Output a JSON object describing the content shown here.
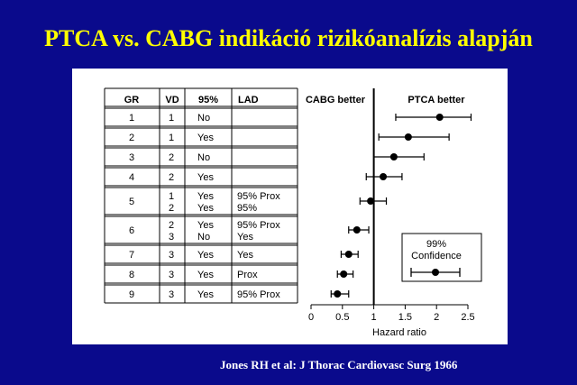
{
  "slide": {
    "title": "PTCA vs. CABG indikáció rizikóanalízis alapján",
    "citation": "Jones RH et al: J Thorac Cardiovasc Surg 1966"
  },
  "colors": {
    "background": "#0a0a8c",
    "title": "#ffff00",
    "citation": "#ffffff",
    "panel": "#ffffff",
    "ink": "#000000"
  },
  "chart_data": {
    "type": "forest",
    "table_headers": [
      "GR",
      "VD",
      "95%",
      "LAD"
    ],
    "rows": [
      {
        "gr": "1",
        "vd": [
          "1"
        ],
        "p95": [
          "No"
        ],
        "lad": [
          ""
        ]
      },
      {
        "gr": "2",
        "vd": [
          "1"
        ],
        "p95": [
          "Yes"
        ],
        "lad": [
          ""
        ]
      },
      {
        "gr": "3",
        "vd": [
          "2"
        ],
        "p95": [
          "No"
        ],
        "lad": [
          ""
        ]
      },
      {
        "gr": "4",
        "vd": [
          "2"
        ],
        "p95": [
          "Yes"
        ],
        "lad": [
          ""
        ]
      },
      {
        "gr": "5",
        "vd": [
          "1",
          "2"
        ],
        "p95": [
          "Yes",
          "Yes"
        ],
        "lad": [
          "95% Prox",
          "95%"
        ]
      },
      {
        "gr": "6",
        "vd": [
          "2",
          "3"
        ],
        "p95": [
          "Yes",
          "No"
        ],
        "lad": [
          "95% Prox",
          "Yes"
        ]
      },
      {
        "gr": "7",
        "vd": [
          "3"
        ],
        "p95": [
          "Yes"
        ],
        "lad": [
          "Yes"
        ]
      },
      {
        "gr": "8",
        "vd": [
          "3"
        ],
        "p95": [
          "Yes"
        ],
        "lad": [
          "Prox"
        ]
      },
      {
        "gr": "9",
        "vd": [
          "3"
        ],
        "p95": [
          "Yes"
        ],
        "lad": [
          "95% Prox"
        ]
      }
    ],
    "left_header": "CABG better",
    "right_header": "PTCA better",
    "xlabel": "Hazard ratio",
    "xticks": [
      0,
      0.5,
      1,
      1.5,
      2,
      2.5
    ],
    "xtick_labels": [
      "0",
      "0.5",
      "1",
      "1.5",
      "2",
      "2.5"
    ],
    "xlim": [
      0,
      2.5
    ],
    "reference_line": 1,
    "series": [
      {
        "values": [
          {
            "estimate": 2.05,
            "lower": 1.35,
            "upper": 2.55
          },
          {
            "estimate": 1.55,
            "lower": 1.08,
            "upper": 2.2
          },
          {
            "estimate": 1.32,
            "lower": 1.0,
            "upper": 1.8
          },
          {
            "estimate": 1.15,
            "lower": 0.88,
            "upper": 1.45
          },
          {
            "estimate": 0.95,
            "lower": 0.78,
            "upper": 1.2
          },
          {
            "estimate": 0.73,
            "lower": 0.6,
            "upper": 0.92
          },
          {
            "estimate": 0.6,
            "lower": 0.48,
            "upper": 0.75
          },
          {
            "estimate": 0.52,
            "lower": 0.42,
            "upper": 0.67
          },
          {
            "estimate": 0.42,
            "lower": 0.32,
            "upper": 0.6
          }
        ]
      }
    ],
    "legend": {
      "title_line1": "99%",
      "title_line2": "Confidence",
      "position": "bottom-right"
    }
  }
}
